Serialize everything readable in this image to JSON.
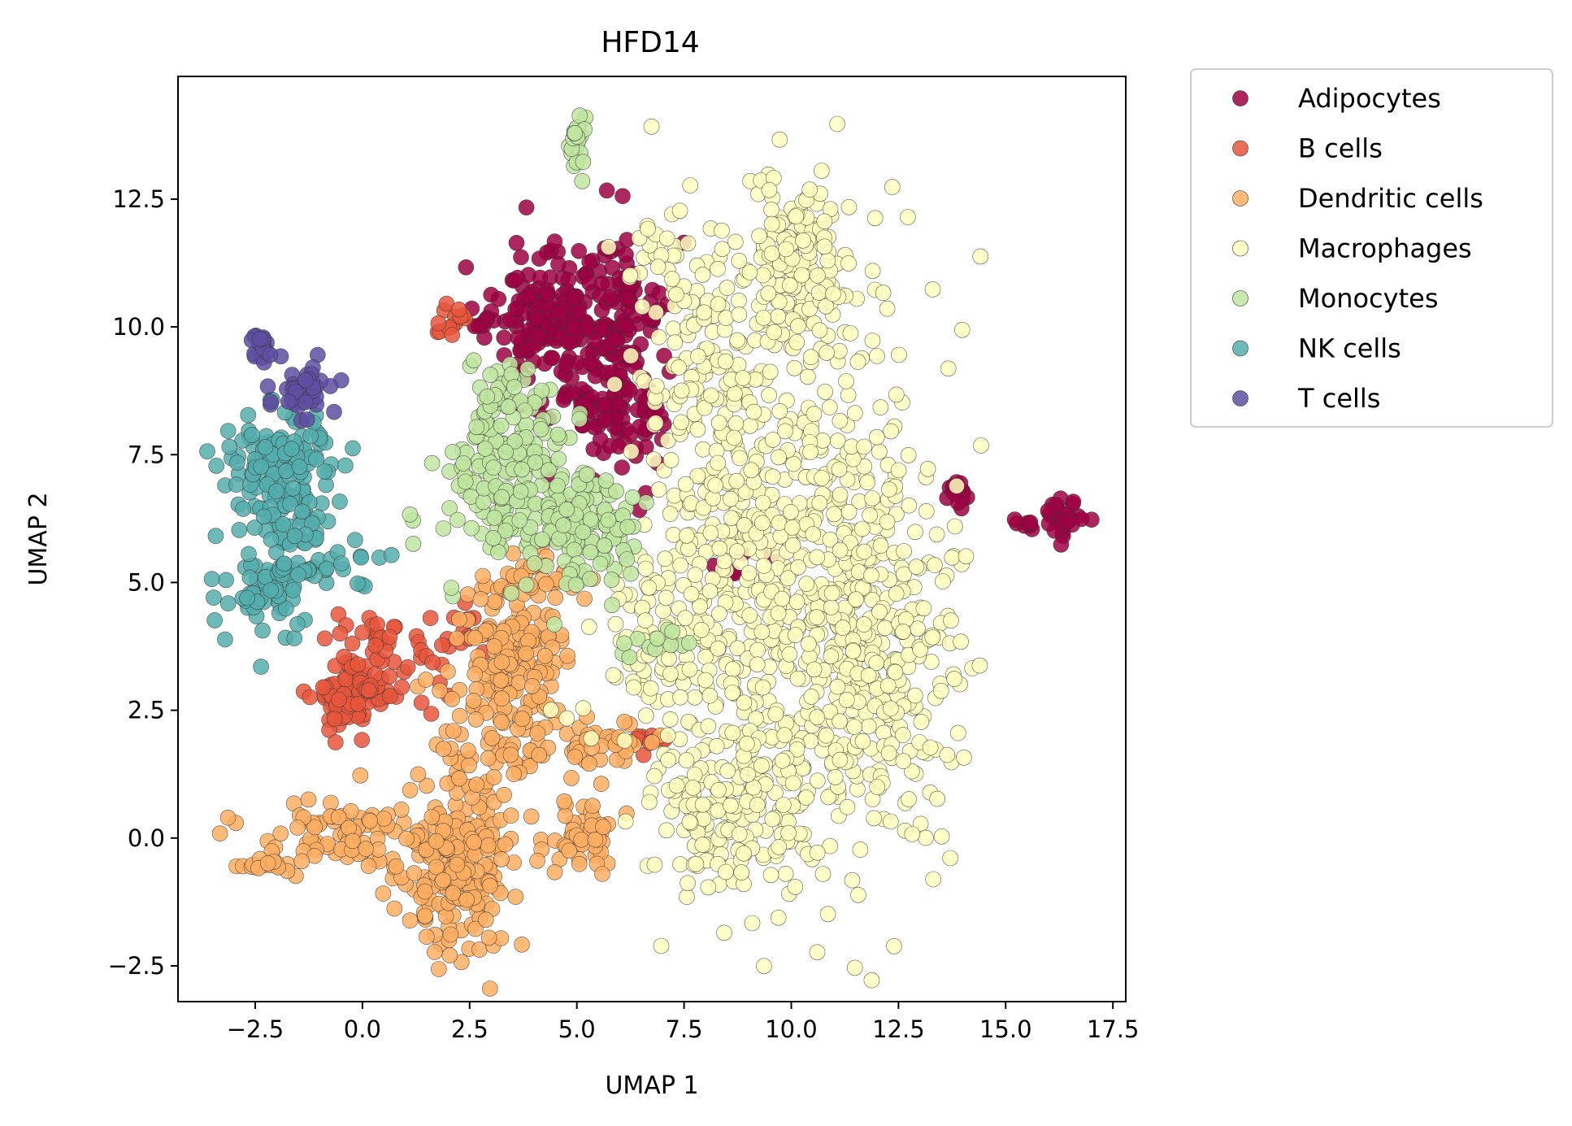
{
  "chart_data": {
    "type": "scatter",
    "title": "HFD14",
    "xlabel": "UMAP 1",
    "ylabel": "UMAP 2",
    "xlim": [
      -4.3,
      17.8
    ],
    "ylim": [
      -3.2,
      14.9
    ],
    "x_ticks": [
      -2.5,
      0.0,
      2.5,
      5.0,
      7.5,
      10.0,
      12.5,
      15.0,
      17.5
    ],
    "x_tick_labels": [
      "−2.5",
      "0.0",
      "2.5",
      "5.0",
      "7.5",
      "10.0",
      "12.5",
      "15.0",
      "17.5"
    ],
    "y_ticks": [
      -2.5,
      0.0,
      2.5,
      5.0,
      7.5,
      10.0,
      12.5
    ],
    "y_tick_labels": [
      "−2.5",
      "0.0",
      "2.5",
      "5.0",
      "7.5",
      "10.0",
      "12.5"
    ],
    "grid": false,
    "legend_position": "outside-right",
    "series": [
      {
        "name": "Adipocytes",
        "color": "#9e0142",
        "clusters": [
          {
            "cx": 4.4,
            "cy": 10.3,
            "sx": 0.7,
            "sy": 0.7,
            "n": 140
          },
          {
            "cx": 5.6,
            "cy": 9.4,
            "sx": 0.6,
            "sy": 1.1,
            "n": 120
          },
          {
            "cx": 6.1,
            "cy": 8.4,
            "sx": 0.5,
            "sy": 0.5,
            "n": 50
          },
          {
            "cx": 6.3,
            "cy": 10.8,
            "sx": 0.4,
            "sy": 0.5,
            "n": 30
          },
          {
            "cx": 2.8,
            "cy": 10.2,
            "sx": 0.3,
            "sy": 0.2,
            "n": 8
          },
          {
            "cx": 13.9,
            "cy": 6.7,
            "sx": 0.15,
            "sy": 0.15,
            "n": 14
          },
          {
            "cx": 16.3,
            "cy": 6.3,
            "sx": 0.25,
            "sy": 0.2,
            "n": 30
          },
          {
            "cx": 15.5,
            "cy": 6.1,
            "sx": 0.3,
            "sy": 0.1,
            "n": 8
          },
          {
            "cx": 9.0,
            "cy": 5.5,
            "sx": 0.4,
            "sy": 0.3,
            "n": 6
          }
        ]
      },
      {
        "name": "B cells",
        "color": "#e8563b",
        "clusters": [
          {
            "cx": -0.3,
            "cy": 2.8,
            "sx": 0.4,
            "sy": 0.35,
            "n": 90
          },
          {
            "cx": 0.0,
            "cy": 4.0,
            "sx": 0.4,
            "sy": 0.4,
            "n": 20
          },
          {
            "cx": 1.3,
            "cy": 3.4,
            "sx": 0.6,
            "sy": 0.4,
            "n": 25
          },
          {
            "cx": 2.1,
            "cy": 10.2,
            "sx": 0.2,
            "sy": 0.2,
            "n": 14
          },
          {
            "cx": 6.6,
            "cy": 1.8,
            "sx": 0.25,
            "sy": 0.15,
            "n": 10
          },
          {
            "cx": 2.2,
            "cy": 4.1,
            "sx": 0.3,
            "sy": 0.3,
            "n": 10
          }
        ]
      },
      {
        "name": "Dendritic cells",
        "color": "#fdae61",
        "clusters": [
          {
            "cx": 3.6,
            "cy": 3.7,
            "sx": 0.6,
            "sy": 0.8,
            "n": 160
          },
          {
            "cx": 2.2,
            "cy": -0.6,
            "sx": 0.6,
            "sy": 0.8,
            "n": 220
          },
          {
            "cx": 3.0,
            "cy": 1.8,
            "sx": 0.7,
            "sy": 0.6,
            "n": 60
          },
          {
            "cx": 5.3,
            "cy": 0.0,
            "sx": 0.5,
            "sy": 0.4,
            "n": 50
          },
          {
            "cx": 5.6,
            "cy": 1.8,
            "sx": 0.6,
            "sy": 0.3,
            "n": 40
          },
          {
            "cx": -0.3,
            "cy": 0.1,
            "sx": 1.1,
            "sy": 0.3,
            "n": 80
          },
          {
            "cx": -2.1,
            "cy": -0.5,
            "sx": 0.4,
            "sy": 0.1,
            "n": 20
          },
          {
            "cx": 4.4,
            "cy": 5.2,
            "sx": 0.5,
            "sy": 0.3,
            "n": 20
          }
        ]
      },
      {
        "name": "Macrophages",
        "color": "#ffffbf",
        "clusters": [
          {
            "cx": 9.7,
            "cy": 5.0,
            "sx": 1.7,
            "sy": 2.9,
            "n": 700
          },
          {
            "cx": 11.8,
            "cy": 3.8,
            "sx": 1.0,
            "sy": 1.6,
            "n": 260
          },
          {
            "cx": 10.2,
            "cy": 11.3,
            "sx": 0.6,
            "sy": 1.0,
            "n": 150
          },
          {
            "cx": 8.5,
            "cy": 0.5,
            "sx": 0.9,
            "sy": 0.8,
            "n": 130
          },
          {
            "cx": 8.0,
            "cy": 9.0,
            "sx": 0.7,
            "sy": 1.2,
            "n": 110
          },
          {
            "cx": 6.7,
            "cy": 4.0,
            "sx": 0.7,
            "sy": 0.9,
            "n": 60
          },
          {
            "cx": 7.2,
            "cy": 11.4,
            "sx": 0.6,
            "sy": 0.4,
            "n": 30
          }
        ]
      },
      {
        "name": "Monocytes",
        "color": "#bfe5a0",
        "clusters": [
          {
            "cx": 3.6,
            "cy": 7.0,
            "sx": 0.8,
            "sy": 0.9,
            "n": 190
          },
          {
            "cx": 5.2,
            "cy": 6.0,
            "sx": 0.7,
            "sy": 0.6,
            "n": 100
          },
          {
            "cx": 3.2,
            "cy": 8.6,
            "sx": 0.4,
            "sy": 0.4,
            "n": 30
          },
          {
            "cx": 5.0,
            "cy": 13.6,
            "sx": 0.1,
            "sy": 0.35,
            "n": 22
          },
          {
            "cx": 6.8,
            "cy": 3.8,
            "sx": 0.4,
            "sy": 0.15,
            "n": 12
          },
          {
            "cx": 1.2,
            "cy": 6.0,
            "sx": 0.05,
            "sy": 0.2,
            "n": 3
          }
        ]
      },
      {
        "name": "NK cells",
        "color": "#54aead",
        "clusters": [
          {
            "cx": -1.9,
            "cy": 7.1,
            "sx": 0.6,
            "sy": 0.6,
            "n": 150
          },
          {
            "cx": -2.3,
            "cy": 4.8,
            "sx": 0.5,
            "sy": 0.35,
            "n": 60
          },
          {
            "cx": -0.9,
            "cy": 5.4,
            "sx": 0.6,
            "sy": 0.3,
            "n": 30
          },
          {
            "cx": -1.5,
            "cy": 6.0,
            "sx": 0.5,
            "sy": 0.3,
            "n": 20
          }
        ]
      },
      {
        "name": "T cells",
        "color": "#5e4fa2",
        "clusters": [
          {
            "cx": -2.3,
            "cy": 9.6,
            "sx": 0.15,
            "sy": 0.2,
            "n": 20
          },
          {
            "cx": -1.3,
            "cy": 8.8,
            "sx": 0.3,
            "sy": 0.25,
            "n": 30
          },
          {
            "cx": -1.6,
            "cy": 8.4,
            "sx": 0.3,
            "sy": 0.2,
            "n": 10
          }
        ]
      }
    ]
  }
}
